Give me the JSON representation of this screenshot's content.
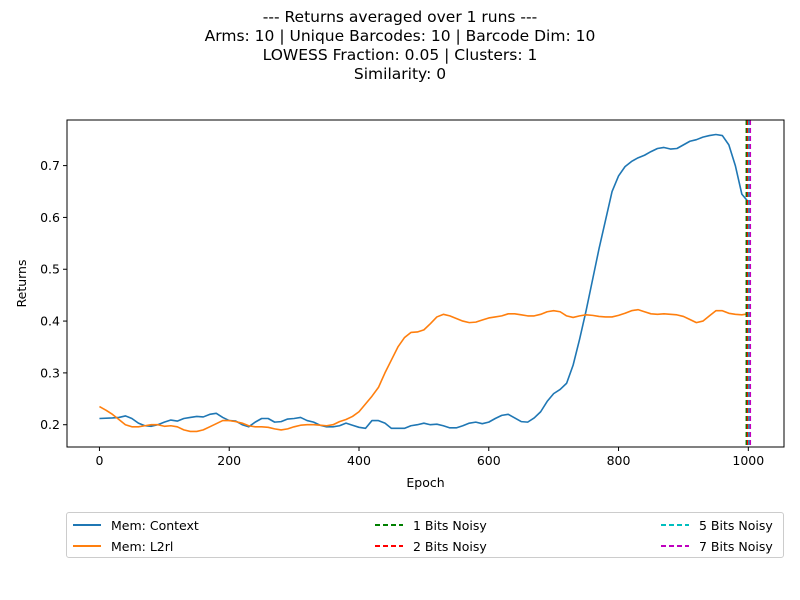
{
  "chart_data": {
    "type": "line",
    "title_lines": [
      "--- Returns averaged over 1 runs ---",
      "Arms: 10 | Unique Barcodes: 10 | Barcode Dim: 10",
      "LOWESS Fraction: 0.05 | Clusters: 1",
      "Similarity: 0"
    ],
    "xlabel": "Epoch",
    "ylabel": "Returns",
    "xlim": [
      -50,
      1055
    ],
    "ylim": [
      0.157,
      0.788
    ],
    "xticks": [
      0,
      200,
      400,
      600,
      800,
      1000
    ],
    "yticks": [
      0.2,
      0.3,
      0.4,
      0.5,
      0.6,
      0.7
    ],
    "series": [
      {
        "name": "Mem: Context",
        "color": "#1f77b4",
        "x": [
          0,
          20,
          30,
          40,
          50,
          60,
          70,
          80,
          90,
          100,
          110,
          120,
          130,
          140,
          150,
          160,
          170,
          180,
          190,
          200,
          210,
          220,
          230,
          240,
          250,
          260,
          270,
          280,
          290,
          300,
          310,
          320,
          330,
          340,
          350,
          360,
          370,
          380,
          390,
          400,
          410,
          420,
          430,
          440,
          450,
          460,
          470,
          480,
          490,
          500,
          510,
          520,
          530,
          540,
          550,
          560,
          570,
          580,
          590,
          600,
          610,
          620,
          630,
          640,
          650,
          660,
          670,
          680,
          690,
          700,
          710,
          720,
          730,
          740,
          750,
          760,
          770,
          780,
          790,
          800,
          810,
          820,
          830,
          840,
          850,
          860,
          870,
          880,
          890,
          900,
          910,
          920,
          930,
          940,
          950,
          960,
          970,
          980,
          990,
          1000
        ],
        "values": [
          0.212,
          0.213,
          0.214,
          0.217,
          0.212,
          0.203,
          0.198,
          0.197,
          0.2,
          0.205,
          0.209,
          0.207,
          0.212,
          0.214,
          0.216,
          0.215,
          0.22,
          0.222,
          0.214,
          0.208,
          0.207,
          0.2,
          0.196,
          0.205,
          0.212,
          0.212,
          0.205,
          0.206,
          0.211,
          0.212,
          0.214,
          0.208,
          0.205,
          0.199,
          0.196,
          0.196,
          0.198,
          0.203,
          0.199,
          0.195,
          0.193,
          0.208,
          0.208,
          0.203,
          0.193,
          0.193,
          0.193,
          0.198,
          0.2,
          0.203,
          0.2,
          0.201,
          0.198,
          0.194,
          0.194,
          0.198,
          0.203,
          0.205,
          0.202,
          0.205,
          0.212,
          0.218,
          0.22,
          0.213,
          0.206,
          0.205,
          0.213,
          0.225,
          0.245,
          0.26,
          0.268,
          0.28,
          0.315,
          0.365,
          0.42,
          0.48,
          0.54,
          0.595,
          0.65,
          0.68,
          0.698,
          0.708,
          0.715,
          0.72,
          0.727,
          0.733,
          0.735,
          0.732,
          0.733,
          0.74,
          0.747,
          0.75,
          0.755,
          0.758,
          0.76,
          0.758,
          0.74,
          0.7,
          0.645,
          0.63
        ]
      },
      {
        "name": "Mem: L2rl",
        "color": "#ff7f0e",
        "x": [
          0,
          10,
          20,
          30,
          40,
          50,
          60,
          70,
          80,
          90,
          100,
          110,
          120,
          130,
          140,
          150,
          160,
          170,
          180,
          190,
          200,
          210,
          220,
          230,
          240,
          250,
          260,
          270,
          280,
          290,
          300,
          310,
          320,
          330,
          340,
          350,
          360,
          370,
          380,
          390,
          400,
          410,
          420,
          430,
          440,
          450,
          460,
          470,
          480,
          490,
          500,
          510,
          520,
          530,
          540,
          550,
          560,
          570,
          580,
          590,
          600,
          610,
          620,
          630,
          640,
          650,
          660,
          670,
          680,
          690,
          700,
          710,
          720,
          730,
          740,
          750,
          760,
          770,
          780,
          790,
          800,
          810,
          820,
          830,
          840,
          850,
          860,
          870,
          880,
          890,
          900,
          910,
          920,
          930,
          940,
          950,
          960,
          970,
          980,
          990,
          1000
        ],
        "values": [
          0.235,
          0.228,
          0.22,
          0.21,
          0.2,
          0.196,
          0.196,
          0.198,
          0.2,
          0.2,
          0.197,
          0.198,
          0.196,
          0.19,
          0.187,
          0.187,
          0.19,
          0.196,
          0.202,
          0.208,
          0.208,
          0.206,
          0.203,
          0.198,
          0.196,
          0.196,
          0.195,
          0.192,
          0.19,
          0.192,
          0.196,
          0.199,
          0.2,
          0.2,
          0.199,
          0.198,
          0.2,
          0.206,
          0.21,
          0.216,
          0.225,
          0.24,
          0.255,
          0.272,
          0.3,
          0.325,
          0.35,
          0.368,
          0.378,
          0.379,
          0.383,
          0.395,
          0.408,
          0.413,
          0.41,
          0.405,
          0.4,
          0.397,
          0.398,
          0.402,
          0.406,
          0.408,
          0.41,
          0.414,
          0.414,
          0.412,
          0.41,
          0.41,
          0.413,
          0.418,
          0.42,
          0.418,
          0.41,
          0.407,
          0.41,
          0.412,
          0.411,
          0.409,
          0.408,
          0.408,
          0.411,
          0.415,
          0.42,
          0.422,
          0.418,
          0.414,
          0.413,
          0.414,
          0.413,
          0.412,
          0.409,
          0.403,
          0.397,
          0.4,
          0.41,
          0.42,
          0.42,
          0.415,
          0.413,
          0.412,
          0.414
        ]
      }
    ],
    "vlines": [
      {
        "name": "1 Bits Noisy",
        "color": "#008000",
        "x": 997
      },
      {
        "name": "2 Bits Noisy",
        "color": "#ff0000",
        "x": 999
      },
      {
        "name": "5 Bits Noisy",
        "color": "#00bfbf",
        "x": 1001
      },
      {
        "name": "7 Bits Noisy",
        "color": "#bf00bf",
        "x": 1003
      }
    ],
    "legend_position": "bottom"
  }
}
